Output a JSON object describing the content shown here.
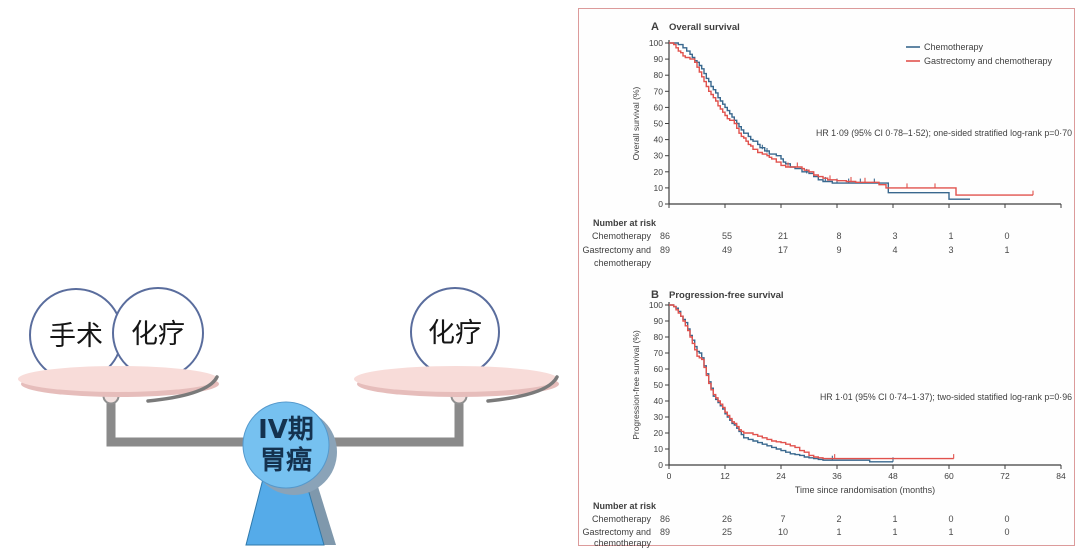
{
  "illustration": {
    "left_pan_labels": [
      "手术",
      "化疗"
    ],
    "right_pan_label": "化疗",
    "fulcrum_label_line1": "IV期",
    "fulcrum_label_line2": "胃癌",
    "colors": {
      "pan": "#f8dcd9",
      "pan_shadow": "#e6bdbb",
      "beam": "#8a8a8a",
      "circle_border": "#5a6d9d",
      "fulcrum_fill": "#76c1f0",
      "fulcrum_text": "#14324f"
    }
  },
  "figure": {
    "border_color": "#dc9b9b",
    "axis_color": "#3f3f3f",
    "text_color": "#3f3f3f"
  },
  "chart_data": [
    {
      "type": "line",
      "panel_letter": "A",
      "title": "Overall survival",
      "ylabel": "Overall survival (%)",
      "xlabel": null,
      "annotation": "HR 1·09 (95% CI 0·78–1·52); one-sided stratified log-rank p=0·70",
      "xlim": [
        0,
        84
      ],
      "ylim": [
        0,
        100
      ],
      "xticks": [
        0,
        12,
        24,
        36,
        48,
        60,
        72,
        84
      ],
      "yticks": [
        0,
        10,
        20,
        30,
        40,
        50,
        60,
        70,
        80,
        90,
        100
      ],
      "show_x_labels": false,
      "legend_shown": true,
      "legend_position": "top-right",
      "series": [
        {
          "name": "Chemotherapy",
          "color": "#39688e",
          "points": [
            [
              2,
              99
            ],
            [
              3,
              97
            ],
            [
              3.8,
              95
            ],
            [
              4.5,
              93
            ],
            [
              5,
              91
            ],
            [
              5.5,
              89
            ],
            [
              6,
              88
            ],
            [
              6.5,
              86
            ],
            [
              7,
              84
            ],
            [
              7.5,
              81
            ],
            [
              8,
              78
            ],
            [
              8.5,
              76
            ],
            [
              9,
              73
            ],
            [
              9.5,
              71
            ],
            [
              10,
              69
            ],
            [
              10.5,
              66
            ],
            [
              11,
              64
            ],
            [
              11.5,
              62
            ],
            [
              12,
              60
            ],
            [
              12.5,
              58
            ],
            [
              13,
              56
            ],
            [
              13.5,
              54
            ],
            [
              14,
              52
            ],
            [
              14.5,
              50
            ],
            [
              15,
              48
            ],
            [
              15.5,
              46
            ],
            [
              16,
              44
            ],
            [
              17,
              42
            ],
            [
              17.5,
              40
            ],
            [
              18,
              39
            ],
            [
              19,
              37
            ],
            [
              19.5,
              35
            ],
            [
              20.5,
              33
            ],
            [
              21.5,
              31
            ],
            [
              23,
              30
            ],
            [
              24,
              28
            ],
            [
              24.5,
              26
            ],
            [
              25,
              25
            ],
            [
              26,
              23
            ],
            [
              27,
              22
            ],
            [
              28.5,
              20
            ],
            [
              30,
              19
            ],
            [
              31,
              17
            ],
            [
              32,
              15
            ],
            [
              33,
              14
            ],
            [
              35,
              13
            ],
            [
              47,
              7
            ],
            [
              60,
              3
            ]
          ],
          "end_month": 64.5,
          "censors": [
            [
              20,
              34
            ],
            [
              21,
              32
            ],
            [
              29.5,
              19
            ],
            [
              33.5,
              14
            ],
            [
              36,
              13
            ],
            [
              38.5,
              13
            ],
            [
              41,
              13
            ],
            [
              44,
              13
            ]
          ]
        },
        {
          "name": "Gastrectomy and chemotherapy",
          "color": "#e1524d",
          "points": [
            [
              1,
              99
            ],
            [
              1.5,
              97
            ],
            [
              2,
              95
            ],
            [
              2.5,
              94
            ],
            [
              3,
              92
            ],
            [
              3.5,
              91
            ],
            [
              4.5,
              90
            ],
            [
              5.5,
              88
            ],
            [
              6,
              85
            ],
            [
              6.5,
              82
            ],
            [
              7,
              79
            ],
            [
              7.5,
              76
            ],
            [
              8,
              73
            ],
            [
              8.5,
              70
            ],
            [
              9,
              68
            ],
            [
              9.5,
              66
            ],
            [
              10,
              64
            ],
            [
              10.5,
              61
            ],
            [
              11,
              59
            ],
            [
              11.5,
              57
            ],
            [
              12,
              55
            ],
            [
              12.5,
              53
            ],
            [
              13,
              52
            ],
            [
              14,
              50
            ],
            [
              14.5,
              47
            ],
            [
              15,
              44
            ],
            [
              15.5,
              42
            ],
            [
              16,
              41
            ],
            [
              16.5,
              39
            ],
            [
              17,
              37
            ],
            [
              17.5,
              36
            ],
            [
              18,
              34
            ],
            [
              19,
              32
            ],
            [
              20,
              31
            ],
            [
              21,
              30
            ],
            [
              21.5,
              29
            ],
            [
              22,
              28
            ],
            [
              23,
              26
            ],
            [
              24,
              24
            ],
            [
              25,
              23
            ],
            [
              28.5,
              22
            ],
            [
              29,
              21
            ],
            [
              30,
              20
            ],
            [
              31,
              18
            ],
            [
              32,
              17
            ],
            [
              33,
              16
            ],
            [
              34,
              15
            ],
            [
              36,
              14.5
            ],
            [
              38,
              14
            ],
            [
              40,
              13.5
            ],
            [
              45,
              12
            ],
            [
              46.5,
              10
            ],
            [
              61.5,
              5.5
            ]
          ],
          "end_month": 78,
          "censors": [
            [
              25.5,
              23
            ],
            [
              27.5,
              23
            ],
            [
              34.5,
              15
            ],
            [
              39,
              14
            ],
            [
              42,
              13.5
            ],
            [
              51,
              10
            ],
            [
              57,
              10
            ],
            [
              78,
              5.5
            ]
          ]
        }
      ],
      "number_at_risk": {
        "header": "Number at risk",
        "columns_months": [
          0,
          12,
          24,
          36,
          48,
          60,
          72
        ],
        "rows": [
          {
            "label_lines": [
              "Chemotherapy"
            ],
            "values": [
              "86",
              "55",
              "21",
              "8",
              "3",
              "1",
              "0"
            ]
          },
          {
            "label_lines": [
              "Gastrectomy and",
              "chemotherapy"
            ],
            "values": [
              "89",
              "49",
              "17",
              "9",
              "4",
              "3",
              "1"
            ]
          }
        ]
      }
    },
    {
      "type": "line",
      "panel_letter": "B",
      "title": "Progression-free survival",
      "ylabel": "Progression-free survival (%)",
      "xlabel": "Time since randomisation (months)",
      "annotation": "HR 1·01 (95% CI 0·74–1·37); two-sided statified log-rank p=0·96",
      "xlim": [
        0,
        84
      ],
      "ylim": [
        0,
        100
      ],
      "xticks": [
        0,
        12,
        24,
        36,
        48,
        60,
        72,
        84
      ],
      "yticks": [
        0,
        10,
        20,
        30,
        40,
        50,
        60,
        70,
        80,
        90,
        100
      ],
      "show_x_labels": true,
      "legend_shown": false,
      "series": [
        {
          "name": "Chemotherapy",
          "color": "#39688e",
          "points": [
            [
              1,
              99
            ],
            [
              1.5,
              98
            ],
            [
              2,
              96
            ],
            [
              2.5,
              93
            ],
            [
              3,
              91
            ],
            [
              3.5,
              89
            ],
            [
              4,
              85
            ],
            [
              4.5,
              81
            ],
            [
              5,
              78
            ],
            [
              5.5,
              74
            ],
            [
              6,
              71
            ],
            [
              6.5,
              70
            ],
            [
              7,
              67
            ],
            [
              7.5,
              62
            ],
            [
              8,
              57
            ],
            [
              8.5,
              52
            ],
            [
              9,
              48
            ],
            [
              9.5,
              43
            ],
            [
              10,
              41
            ],
            [
              10.5,
              39
            ],
            [
              11,
              37
            ],
            [
              11.5,
              35
            ],
            [
              12,
              32
            ],
            [
              12.5,
              30
            ],
            [
              13,
              28
            ],
            [
              13.5,
              26
            ],
            [
              14,
              25
            ],
            [
              14.5,
              23
            ],
            [
              15,
              21
            ],
            [
              15.5,
              19
            ],
            [
              16,
              17
            ],
            [
              17,
              16
            ],
            [
              18,
              15
            ],
            [
              19,
              14
            ],
            [
              20,
              13
            ],
            [
              21,
              12
            ],
            [
              22,
              11
            ],
            [
              23,
              10
            ],
            [
              24,
              9
            ],
            [
              25,
              8
            ],
            [
              26,
              7
            ],
            [
              27,
              6.5
            ],
            [
              28,
              6
            ],
            [
              29,
              5
            ],
            [
              30,
              4.5
            ],
            [
              31,
              4
            ],
            [
              32,
              3.5
            ],
            [
              33,
              3
            ],
            [
              43,
              2
            ]
          ],
          "end_month": 48,
          "censors": [
            [
              35,
              3
            ],
            [
              48,
              2
            ]
          ]
        },
        {
          "name": "Gastrectomy and chemotherapy",
          "color": "#e1524d",
          "points": [
            [
              1,
              99
            ],
            [
              1.5,
              97
            ],
            [
              2,
              95
            ],
            [
              2.5,
              93
            ],
            [
              3,
              90
            ],
            [
              3.5,
              87
            ],
            [
              4,
              84
            ],
            [
              4.5,
              80
            ],
            [
              5,
              76
            ],
            [
              5.5,
              72
            ],
            [
              6,
              68
            ],
            [
              6.5,
              67
            ],
            [
              7,
              66
            ],
            [
              7.5,
              61
            ],
            [
              8,
              56
            ],
            [
              8.5,
              51
            ],
            [
              9,
              47
            ],
            [
              9.5,
              44
            ],
            [
              10,
              42
            ],
            [
              10.5,
              40
            ],
            [
              11,
              38
            ],
            [
              11.5,
              36
            ],
            [
              12,
              33
            ],
            [
              12.5,
              31
            ],
            [
              13,
              29
            ],
            [
              13.5,
              27
            ],
            [
              14,
              26
            ],
            [
              14.5,
              24
            ],
            [
              15,
              22
            ],
            [
              15.5,
              21
            ],
            [
              16,
              20
            ],
            [
              18,
              19
            ],
            [
              19,
              18
            ],
            [
              20,
              17
            ],
            [
              21,
              16
            ],
            [
              22,
              15
            ],
            [
              23,
              14.5
            ],
            [
              24,
              14
            ],
            [
              25,
              13
            ],
            [
              26,
              12
            ],
            [
              27,
              11
            ],
            [
              28,
              9
            ],
            [
              29,
              8
            ],
            [
              30,
              6
            ],
            [
              31,
              5
            ],
            [
              32,
              4.5
            ],
            [
              33,
              4
            ]
          ],
          "end_month": 61,
          "censors": [
            [
              35.5,
              4
            ],
            [
              61,
              4
            ]
          ]
        }
      ],
      "number_at_risk": {
        "header": "Number at risk",
        "columns_months": [
          0,
          12,
          24,
          36,
          48,
          60,
          72
        ],
        "rows": [
          {
            "label_lines": [
              "Chemotherapy"
            ],
            "values": [
              "86",
              "26",
              "7",
              "2",
              "1",
              "0",
              "0"
            ]
          },
          {
            "label_lines": [
              "Gastrectomy and",
              "chemotherapy"
            ],
            "values": [
              "89",
              "25",
              "10",
              "1",
              "1",
              "1",
              "0"
            ]
          }
        ]
      }
    }
  ]
}
